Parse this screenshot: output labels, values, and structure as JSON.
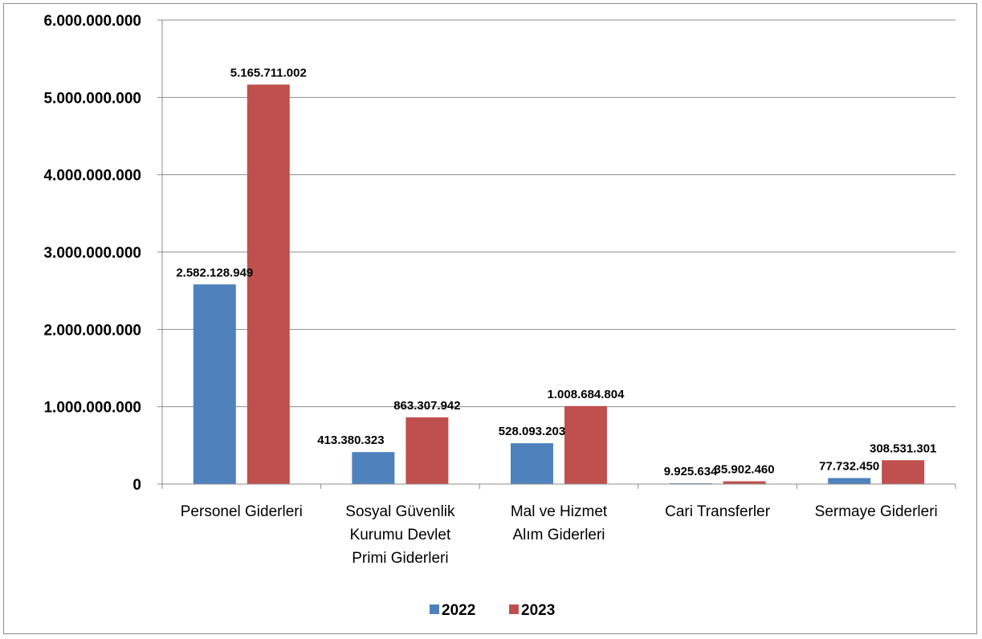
{
  "chart_data": {
    "type": "bar",
    "categories": [
      [
        "Personel Giderleri"
      ],
      [
        "Sosyal Güvenlik",
        "Kurumu Devlet",
        "Primi Giderleri"
      ],
      [
        "Mal ve Hizmet",
        "Alım Giderleri"
      ],
      [
        "Cari Transferler"
      ],
      [
        "Sermaye Giderleri"
      ]
    ],
    "series": [
      {
        "name": "2022",
        "color": "#4f81bd",
        "values": [
          2582128949,
          413380323,
          528093203,
          9925634,
          77732450
        ],
        "labels": [
          "2.582.128.949",
          "413.380.323",
          "528.093.203",
          "9.925.634",
          "77.732.450"
        ]
      },
      {
        "name": "2023",
        "color": "#c0504d",
        "values": [
          5165711002,
          863307942,
          1008684804,
          35902460,
          308531301
        ],
        "labels": [
          "5.165.711.002",
          "863.307.942",
          "1.008.684.804",
          "35.902.460",
          "308.531.301"
        ]
      }
    ],
    "ylim": [
      0,
      6000000000
    ],
    "yticks": [
      0,
      1000000000,
      2000000000,
      3000000000,
      4000000000,
      5000000000,
      6000000000
    ],
    "ytick_labels": [
      "0",
      "1.000.000.000",
      "2.000.000.000",
      "3.000.000.000",
      "4.000.000.000",
      "5.000.000.000",
      "6.000.000.000"
    ],
    "grid": true,
    "legend": "bottom"
  }
}
